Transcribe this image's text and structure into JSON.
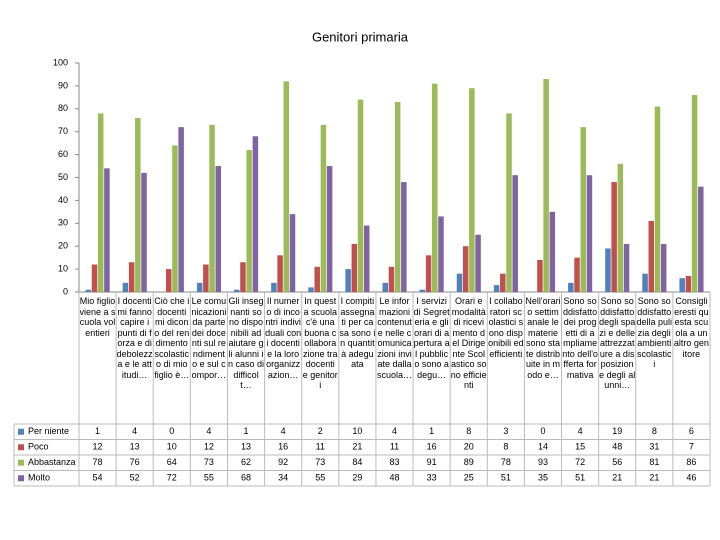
{
  "chart_data": {
    "type": "bar",
    "title": "Genitori primaria",
    "categories": [
      "Mio figlio viene a scuola volentieri",
      "I docenti mi fanno capire i punti di forza e di debolezza e le attitudi…",
      "Ciò che i docenti mi dicono del rendimento scolastico di mio figlio è…",
      "Le comunicazioni da parte dei docenti sul rendimento e sul compor…",
      "Gli insegnanti sono disponibili ad aiutare gli alunni in caso di difficolt…",
      "Il numero di incontri individuali con i docenti e la loro organizz azion…",
      "In questa scuola c'è una buona collaborazione tra docenti e genitori",
      "I compiti assegnati per casa sono in quantità adeguata",
      "Le informazioni contenute nelle comunicazioni inviate dalla scuola…",
      "I servizi di Segreteria e gli orari di apertura al pubblico sono adegu…",
      "Orari e modalità di ricevimento del Dirigente Scolastico sono efficienti",
      "I collaboratori scolastici sono disponibili ed efficienti",
      "Nell'orario settimanale le materie sono state distribuite in modo e…",
      "Sono soddisfatto dei progetti di ampliamento dell'offerta formativa",
      "Sono soddisfatto degli spazi e delle attrezzature a disposizione degli alunni…",
      "Sono soddisfatto della pulizia degli ambienti scolastici",
      "Consiglieresti questa scuola a un altro genitore"
    ],
    "series": [
      {
        "name": "Per niente",
        "color": "#4f81bd",
        "values": [
          1,
          4,
          0,
          4,
          1,
          4,
          2,
          10,
          4,
          1,
          8,
          3,
          0,
          4,
          19,
          8,
          6
        ]
      },
      {
        "name": "Poco",
        "color": "#c0504d",
        "values": [
          12,
          13,
          10,
          12,
          13,
          16,
          11,
          21,
          11,
          16,
          20,
          8,
          14,
          15,
          48,
          31,
          7
        ]
      },
      {
        "name": "Abbastanza",
        "color": "#9bbb59",
        "values": [
          78,
          76,
          64,
          73,
          62,
          92,
          73,
          84,
          83,
          91,
          89,
          78,
          93,
          72,
          56,
          81,
          86
        ]
      },
      {
        "name": "Molto",
        "color": "#8064a2",
        "values": [
          54,
          52,
          72,
          55,
          68,
          34,
          55,
          29,
          48,
          33,
          25,
          51,
          35,
          51,
          21,
          21,
          46
        ]
      }
    ],
    "ylim": [
      0,
      100
    ],
    "yticks": [
      0,
      10,
      20,
      30,
      40,
      50,
      60,
      70,
      80,
      90,
      100
    ]
  }
}
